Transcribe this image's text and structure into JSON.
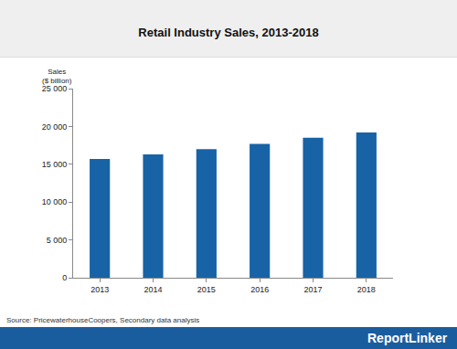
{
  "chart_data": {
    "type": "bar",
    "title": "Retail Industry Sales, 2013-2018",
    "ylabel": [
      "Sales",
      "($ billion)"
    ],
    "categories": [
      "2013",
      "2014",
      "2015",
      "2016",
      "2017",
      "2018"
    ],
    "values": [
      15700,
      16300,
      17000,
      17700,
      18500,
      19200
    ],
    "color": "#1763a6",
    "ylim": [
      0,
      25000
    ],
    "yticks": [
      0,
      {
        "value": 5000,
        "label": "5 000"
      },
      {
        "value": 10000,
        "label": "10 000"
      },
      {
        "value": 15000,
        "label": "15 000"
      },
      {
        "value": 20000,
        "label": "20 000"
      },
      {
        "value": 25000,
        "label": "25 000"
      }
    ],
    "grid": false,
    "annotations": [
      "Source: PricewaterhouseCoopers, Secondary data analysis",
      "ReportLinker"
    ]
  }
}
